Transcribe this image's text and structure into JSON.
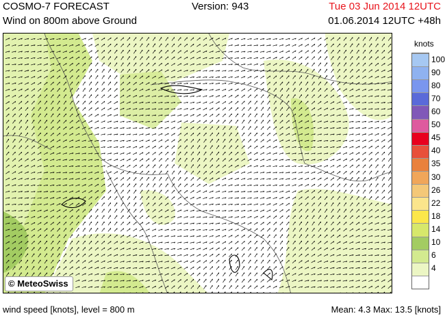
{
  "header": {
    "title": "COSMO-7 FORECAST",
    "subtitle": "Wind on 800m above Ground",
    "version": "Version: 943",
    "run_date": "Tue 03 Jun 2014 12UTC",
    "valid_time": "01.06.2014 12UTC +48h"
  },
  "map": {
    "copyright": "© MeteoSwiss",
    "copyright_icon": "copyright-icon"
  },
  "legend": {
    "unit": "knots",
    "levels": [
      {
        "label": "100",
        "color": "#a6c8f2"
      },
      {
        "label": "90",
        "color": "#8fb2f0"
      },
      {
        "label": "80",
        "color": "#7a96ee"
      },
      {
        "label": "70",
        "color": "#5a6ad9"
      },
      {
        "label": "60",
        "color": "#8058b8"
      },
      {
        "label": "50",
        "color": "#de5a9e"
      },
      {
        "label": "45",
        "color": "#e8001e"
      },
      {
        "label": "40",
        "color": "#e8503a"
      },
      {
        "label": "35",
        "color": "#e9813c"
      },
      {
        "label": "30",
        "color": "#f0a65a"
      },
      {
        "label": "26",
        "color": "#f4c878"
      },
      {
        "label": "22",
        "color": "#fbe58c"
      },
      {
        "label": "18",
        "color": "#fce74a"
      },
      {
        "label": "14",
        "color": "#d7e86b"
      },
      {
        "label": "10",
        "color": "#a3cc62"
      },
      {
        "label": "6",
        "color": "#d3ea8f"
      },
      {
        "label": "4",
        "color": "#ecf6c4"
      },
      {
        "label": "",
        "color": "#ffffff"
      }
    ]
  },
  "footer": {
    "left": "wind speed [knots], level = 800 m",
    "right": "Mean:    4.3 Max:   13.5 [knots]"
  },
  "colors": {
    "title_red": "#e8141c",
    "field_light": "#ecf6c4",
    "field_mid": "#d3ea8f",
    "field_dark": "#a3cc62"
  }
}
